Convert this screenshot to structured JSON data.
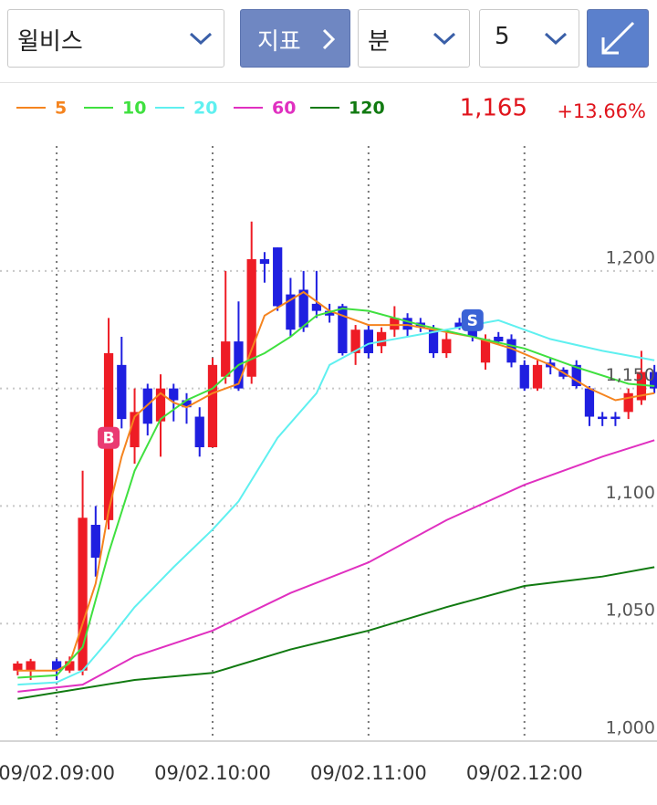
{
  "toolbar": {
    "stock": "윌비스",
    "indicator": "지표",
    "interval_unit": "분",
    "interval": "5"
  },
  "quote": {
    "price": "1,165",
    "change": "+13.66%"
  },
  "chart_data": {
    "type": "candlestick",
    "up_color": "#ee1c25",
    "down_color": "#1f1fe0",
    "x": [
      -15,
      -10,
      0,
      5,
      10,
      15,
      20,
      25,
      30,
      35,
      40,
      45,
      50,
      55,
      60,
      65,
      70,
      75,
      80,
      85,
      90,
      95,
      100,
      105,
      110,
      115,
      120,
      125,
      130,
      135,
      140,
      145,
      150,
      155,
      160,
      165,
      170,
      175,
      180,
      185,
      190,
      195,
      200,
      205,
      210,
      215,
      220,
      225,
      230
    ],
    "open": [
      1030,
      1030,
      1034,
      1030,
      1030,
      1092,
      1094,
      1160,
      1125,
      1150,
      1136,
      1150,
      1145,
      1138,
      1125,
      1155,
      1170,
      1155,
      1205,
      1210,
      1190,
      1192,
      1186,
      1183,
      1185,
      1165,
      1175,
      1168,
      1175,
      1180,
      1178,
      1175,
      1165,
      1178,
      1176,
      1161,
      1172,
      1171,
      1160,
      1150,
      1161,
      1158,
      1160,
      1150,
      1138,
      1138,
      1140,
      1145,
      1157
    ],
    "high": [
      1034,
      1035,
      1035,
      1036,
      1115,
      1100,
      1180,
      1172,
      1150,
      1152,
      1156,
      1152,
      1148,
      1142,
      1163,
      1200,
      1187,
      1221,
      1208,
      1210,
      1197,
      1200,
      1200,
      1186,
      1186,
      1177,
      1177,
      1176,
      1185,
      1182,
      1180,
      1177,
      1175,
      1180,
      1178,
      1173,
      1174,
      1173,
      1162,
      1162,
      1163,
      1159,
      1162,
      1151,
      1140,
      1140,
      1150,
      1166,
      1160
    ],
    "low": [
      1028,
      1026,
      1026,
      1029,
      1028,
      1070,
      1090,
      1133,
      1118,
      1130,
      1121,
      1136,
      1135,
      1121,
      1125,
      1152,
      1149,
      1152,
      1195,
      1183,
      1172,
      1174,
      1180,
      1178,
      1164,
      1160,
      1163,
      1165,
      1172,
      1172,
      1174,
      1163,
      1163,
      1175,
      1170,
      1158,
      1169,
      1159,
      1149,
      1149,
      1156,
      1154,
      1150,
      1134,
      1134,
      1134,
      1137,
      1143,
      1148
    ],
    "close": [
      1033,
      1034,
      1030,
      1034,
      1095,
      1078,
      1165,
      1137,
      1140,
      1135,
      1150,
      1145,
      1142,
      1125,
      1160,
      1170,
      1150,
      1205,
      1203,
      1185,
      1175,
      1176,
      1183,
      1181,
      1165,
      1175,
      1165,
      1174,
      1180,
      1175,
      1176,
      1165,
      1171,
      1176,
      1172,
      1171,
      1170,
      1161,
      1150,
      1160,
      1159,
      1155,
      1151,
      1138,
      1137,
      1137,
      1148,
      1157,
      1150
    ],
    "lines": [
      {
        "name": "5",
        "color": "#f5841f",
        "x": [
          -15,
          0,
          5,
          15,
          20,
          25,
          30,
          40,
          45,
          50,
          60,
          70,
          80,
          95,
          105,
          120,
          135,
          145,
          160,
          175,
          190,
          205,
          215,
          230
        ],
        "values": [
          1030,
          1030,
          1033,
          1067,
          1098,
          1121,
          1138,
          1148,
          1144,
          1142,
          1148,
          1152,
          1181,
          1191,
          1183,
          1177,
          1177,
          1175,
          1172,
          1167,
          1160,
          1150,
          1145,
          1148
        ]
      },
      {
        "name": "10",
        "color": "#3fe03f",
        "x": [
          -15,
          0,
          10,
          20,
          30,
          40,
          50,
          60,
          70,
          80,
          90,
          100,
          110,
          120,
          140,
          160,
          180,
          200,
          220,
          230
        ],
        "values": [
          1027,
          1028,
          1040,
          1080,
          1115,
          1137,
          1145,
          1150,
          1160,
          1165,
          1172,
          1181,
          1184,
          1183,
          1177,
          1172,
          1167,
          1159,
          1152,
          1151
        ]
      },
      {
        "name": "20",
        "color": "#5ff0f0",
        "x": [
          -15,
          0,
          10,
          20,
          30,
          45,
          60,
          70,
          85,
          100,
          105,
          120,
          140,
          170,
          190,
          210,
          230
        ],
        "values": [
          1024,
          1025,
          1030,
          1043,
          1057,
          1074,
          1090,
          1102,
          1129,
          1148,
          1160,
          1169,
          1173,
          1179,
          1171,
          1166,
          1162
        ]
      },
      {
        "name": "60",
        "color": "#e030c0",
        "x": [
          -15,
          10,
          30,
          60,
          90,
          120,
          150,
          180,
          210,
          230
        ],
        "values": [
          1021,
          1024,
          1036,
          1047,
          1063,
          1076,
          1094,
          1109,
          1121,
          1128
        ]
      },
      {
        "name": "120",
        "color": "#117a11",
        "x": [
          -15,
          30,
          60,
          90,
          120,
          150,
          180,
          210,
          230
        ],
        "values": [
          1018,
          1026,
          1029,
          1039,
          1047,
          1057,
          1066,
          1070,
          1074
        ]
      }
    ],
    "markers": [
      {
        "label": "B",
        "x": 20,
        "y": 1129,
        "color": "#ea3a72"
      },
      {
        "label": "S",
        "x": 160,
        "y": 1179,
        "color": "#3a63d6"
      }
    ],
    "xlim": [
      -21.8,
      231
    ],
    "xticks": [
      {
        "value": 0,
        "label": "09/02.09:00"
      },
      {
        "value": 60,
        "label": "09/02.10:00"
      },
      {
        "value": 120,
        "label": "09/02.11:00"
      },
      {
        "value": 180,
        "label": "09/02.12:00"
      }
    ],
    "ylim": [
      1000,
      1257
    ],
    "yticks": [
      {
        "value": 1000,
        "label": "1,000"
      },
      {
        "value": 1050,
        "label": "1,050"
      },
      {
        "value": 1100,
        "label": "1,100"
      },
      {
        "value": 1150,
        "label": "1,150"
      },
      {
        "value": 1200,
        "label": "1,200"
      }
    ],
    "grid": true
  }
}
